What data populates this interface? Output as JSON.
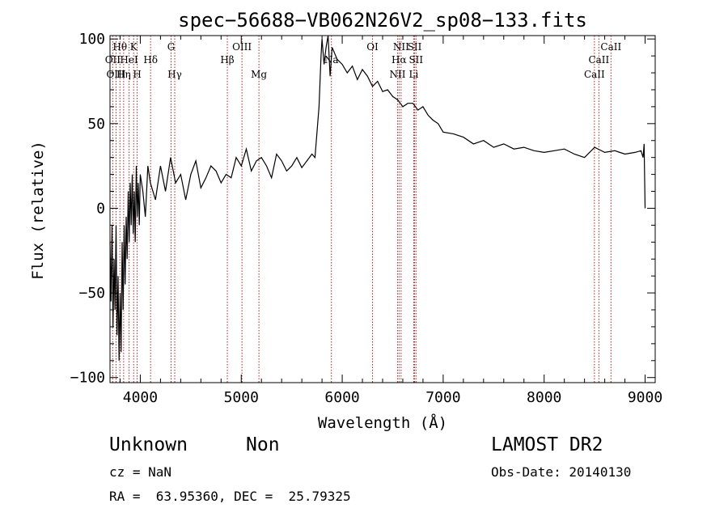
{
  "chart_data": {
    "type": "line",
    "title": "spec−56688−VB062N26V2_sp08−133.fits",
    "xlabel": "Wavelength (Å)",
    "ylabel": "Flux (relative)",
    "xlim": [
      3700,
      9100
    ],
    "ylim": [
      -103,
      102
    ],
    "xticks": [
      4000,
      5000,
      6000,
      7000,
      8000,
      9000
    ],
    "yticks": [
      -100,
      -50,
      0,
      50,
      100
    ],
    "ytick_labels": [
      "−100",
      "−50",
      "0",
      "50",
      "100"
    ],
    "grid": false,
    "series": [
      {
        "x": [
          3700,
          3710,
          3720,
          3730,
          3740,
          3750,
          3760,
          3770,
          3780,
          3790,
          3800,
          3810,
          3820,
          3830,
          3840,
          3850,
          3860,
          3870,
          3880,
          3890,
          3900,
          3910,
          3920,
          3930,
          3940,
          3950,
          3960,
          3970,
          3980,
          3990,
          4000,
          4025,
          4050,
          4075,
          4100,
          4150,
          4200,
          4250,
          4300,
          4350,
          4400,
          4450,
          4500,
          4550,
          4600,
          4650,
          4700,
          4750,
          4800,
          4850,
          4900,
          4950,
          5000,
          5050,
          5100,
          5150,
          5200,
          5250,
          5300,
          5350,
          5400,
          5450,
          5500,
          5550,
          5600,
          5650,
          5700,
          5730,
          5750,
          5770,
          5790,
          5800,
          5820,
          5840,
          5860,
          5880,
          5900,
          5950,
          6000,
          6050,
          6100,
          6150,
          6200,
          6250,
          6300,
          6350,
          6400,
          6450,
          6500,
          6550,
          6600,
          6650,
          6700,
          6750,
          6800,
          6850,
          6900,
          6950,
          7000,
          7100,
          7200,
          7300,
          7400,
          7500,
          7600,
          7700,
          7800,
          7900,
          8000,
          8100,
          8200,
          8300,
          8400,
          8500,
          8600,
          8700,
          8800,
          8900,
          8960,
          8980,
          8990,
          9000
        ],
        "y": [
          -20,
          -55,
          -10,
          -70,
          -30,
          -60,
          -10,
          -75,
          -40,
          -90,
          -50,
          -85,
          -20,
          -60,
          -10,
          -45,
          -5,
          -30,
          10,
          -20,
          15,
          -10,
          20,
          -15,
          10,
          -20,
          25,
          -5,
          15,
          -10,
          20,
          10,
          -5,
          25,
          15,
          5,
          25,
          10,
          30,
          15,
          20,
          5,
          20,
          28,
          12,
          18,
          25,
          22,
          15,
          20,
          18,
          30,
          25,
          35,
          22,
          28,
          30,
          25,
          18,
          32,
          28,
          22,
          25,
          30,
          24,
          28,
          32,
          30,
          45,
          60,
          90,
          100,
          85,
          95,
          105,
          78,
          95,
          88,
          85,
          80,
          84,
          76,
          82,
          78,
          72,
          75,
          69,
          70,
          66,
          64,
          60,
          62,
          62,
          58,
          60,
          55,
          52,
          50,
          45,
          44,
          42,
          38,
          40,
          36,
          38,
          35,
          36,
          34,
          33,
          34,
          35,
          32,
          30,
          36,
          33,
          34,
          32,
          33,
          34,
          30,
          38,
          0
        ]
      }
    ],
    "lines": [
      {
        "label": "Hθ",
        "x": 3798,
        "row": 1
      },
      {
        "label": "OII",
        "x": 3727,
        "row": 2
      },
      {
        "label": "OIII",
        "x": 3760,
        "row": 3
      },
      {
        "label": "Hη",
        "x": 3835,
        "row": 3
      },
      {
        "label": "HeI",
        "x": 3889,
        "row": 2
      },
      {
        "label": "K",
        "x": 3934,
        "row": 1
      },
      {
        "label": "H",
        "x": 3969,
        "row": 3
      },
      {
        "label": "Hδ",
        "x": 4102,
        "row": 2
      },
      {
        "label": "G",
        "x": 4305,
        "row": 1
      },
      {
        "label": "Hγ",
        "x": 4341,
        "row": 3
      },
      {
        "label": "Hβ",
        "x": 4862,
        "row": 2
      },
      {
        "label": "OIII",
        "x": 5007,
        "row": 1
      },
      {
        "label": "Mg",
        "x": 5175,
        "row": 3
      },
      {
        "label": "Na",
        "x": 5893,
        "row": 2
      },
      {
        "label": "OI",
        "x": 6300,
        "row": 1
      },
      {
        "label": "NII",
        "x": 6548,
        "row": 3
      },
      {
        "label": "Hα",
        "x": 6563,
        "row": 2
      },
      {
        "label": "NII",
        "x": 6583,
        "row": 1
      },
      {
        "label": "SII",
        "x": 6717,
        "row": 1
      },
      {
        "label": "SII",
        "x": 6731,
        "row": 2
      },
      {
        "label": "Li",
        "x": 6708,
        "row": 3
      },
      {
        "label": "CaII",
        "x": 8498,
        "row": 3
      },
      {
        "label": "CaII",
        "x": 8542,
        "row": 2
      },
      {
        "label": "CaII",
        "x": 8662,
        "row": 1
      }
    ]
  },
  "info": {
    "class": "Unknown",
    "subclass": "Non",
    "survey": "LAMOST DR2",
    "cz": "cz = NaN",
    "obsdate": "Obs-Date: 20140130",
    "radec": "RA =  63.95360, DEC =  25.79325"
  }
}
